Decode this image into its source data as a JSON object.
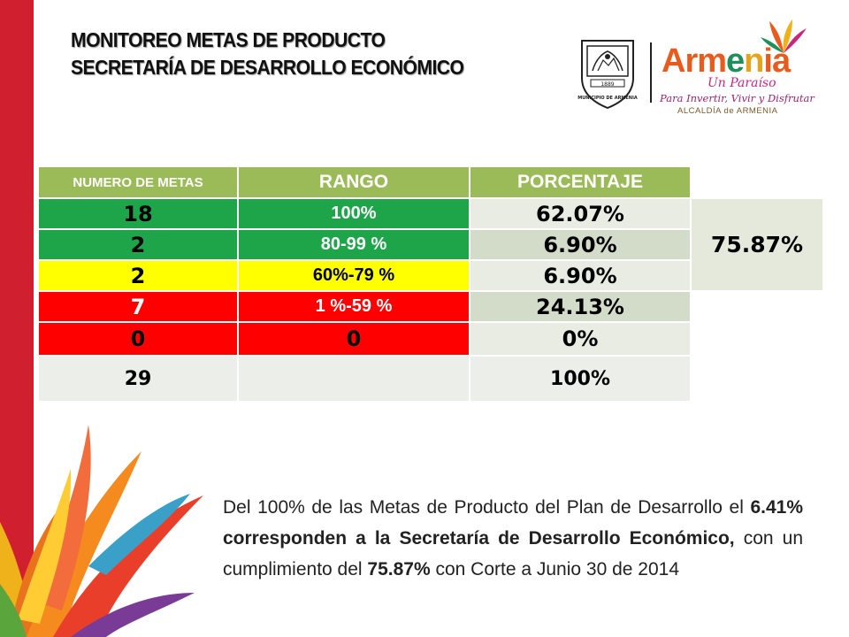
{
  "header": {
    "title_line1": "MONITOREO METAS DE PRODUCTO",
    "title_line2": "SECRETARÍA DE DESARROLLO ECONÓMICO"
  },
  "logos": {
    "seal_text": "MUNICIPIO DE ARMENIA",
    "seal_year": "1889",
    "brand_letters": [
      "Arm",
      "e",
      "n",
      "ia"
    ],
    "brand_subtitle": "Un Paraíso",
    "brand_slogan": "Para Invertir, Vivir y Disfrutar",
    "brand_alcaldia": "ALCALDÍA de ARMENIA"
  },
  "table": {
    "headers": {
      "numero": "NUMERO DE METAS",
      "rango": "RANGO",
      "porcentaje": "PORCENTAJE"
    },
    "rows": [
      {
        "numero": "18",
        "rango": "100%",
        "porcentaje": "62.07%"
      },
      {
        "numero": "2",
        "rango": "80-99  %",
        "porcentaje": "6.90%"
      },
      {
        "numero": "2",
        "rango": "60%-79 %",
        "porcentaje": "6.90%"
      },
      {
        "numero": "7",
        "rango": "1  %-59 %",
        "porcentaje": "24.13%"
      },
      {
        "numero": "0",
        "rango": "0",
        "porcentaje": "0%"
      }
    ],
    "total": {
      "numero": "29",
      "rango": "",
      "porcentaje": "100%"
    },
    "cumplimiento": "75.87%"
  },
  "summary": {
    "part1": "Del 100% de las Metas de Producto del Plan de Desarrollo el ",
    "bold1": "6.41% corresponden a la Secretaría de Desarrollo Económico,",
    "part2": " con un cumplimiento del ",
    "bold2": "75.87%",
    "part3": " con Corte a Junio 30 de 2014"
  },
  "colors": {
    "header_green": "#9bbb59",
    "band_red": "#d0202f",
    "range_green": "#1ea54a",
    "range_yellow": "#ffff00",
    "range_red": "#ff0000"
  }
}
